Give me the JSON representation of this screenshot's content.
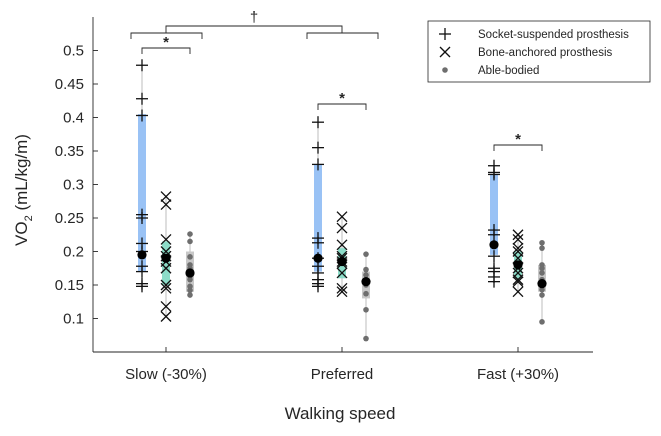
{
  "chart_data": {
    "type": "scatter",
    "xlabel": "Walking speed",
    "ylabel": "VO",
    "ylabel_sub": "2",
    "ylabel_unit": " (mL/kg/m)",
    "categories": [
      "Slow (-30%)",
      "Preferred",
      "Fast (+30%)"
    ],
    "ylim": [
      0.05,
      0.55
    ],
    "yticks": [
      0.1,
      0.15,
      0.2,
      0.25,
      0.3,
      0.35,
      0.4,
      0.45,
      0.5
    ],
    "ytick_labels": [
      "0.1",
      "0.15",
      "0.2",
      "0.25",
      "0.3",
      "0.35",
      "0.4",
      "0.45",
      "0.5"
    ],
    "grid": false,
    "legend_position": "top-right",
    "significance_marks": [
      {
        "label": "*",
        "between": "Socket-suspended prosthesis vs Able-bodied",
        "category": "Slow (-30%)"
      },
      {
        "label": "*",
        "between": "Socket-suspended prosthesis vs Able-bodied",
        "category": "Preferred"
      },
      {
        "label": "*",
        "between": "Socket-suspended prosthesis vs Able-bodied",
        "category": "Fast (+30%)"
      },
      {
        "label": "†",
        "between": "Slow (-30%) vs Preferred"
      }
    ],
    "series": [
      {
        "name": "Socket-suspended prosthesis",
        "marker": "plus",
        "band_color": "#99c2f5",
        "means": [
          0.195,
          0.19,
          0.21
        ],
        "ranges": [
          [
            0.17,
            0.405
          ],
          [
            0.17,
            0.33
          ],
          [
            0.195,
            0.315
          ]
        ],
        "values": [
          [
            0.478,
            0.428,
            0.403,
            0.255,
            0.25,
            0.212,
            0.2,
            0.178,
            0.17,
            0.152,
            0.148
          ],
          [
            0.393,
            0.355,
            0.33,
            0.22,
            0.213,
            0.19,
            0.178,
            0.168,
            0.158,
            0.152,
            0.148
          ],
          [
            0.328,
            0.318,
            0.315,
            0.232,
            0.225,
            0.193,
            0.175,
            0.17,
            0.162,
            0.155
          ]
        ]
      },
      {
        "name": "Bone-anchored prosthesis",
        "marker": "x",
        "band_color": "#8cdcc8",
        "means": [
          0.19,
          0.185,
          0.18
        ],
        "ranges": [
          [
            0.15,
            0.215
          ],
          [
            0.16,
            0.205
          ],
          [
            0.16,
            0.2
          ]
        ],
        "values": [
          [
            0.282,
            0.27,
            0.218,
            0.2,
            0.193,
            0.185,
            0.175,
            0.15,
            0.145,
            0.118,
            0.103
          ],
          [
            0.252,
            0.235,
            0.21,
            0.193,
            0.19,
            0.185,
            0.182,
            0.168,
            0.145,
            0.14
          ],
          [
            0.225,
            0.218,
            0.205,
            0.2,
            0.19,
            0.175,
            0.168,
            0.158,
            0.155,
            0.14
          ]
        ]
      },
      {
        "name": "Able-bodied",
        "marker": "dot",
        "band_color": "#c8c8c8",
        "means": [
          0.168,
          0.155,
          0.152
        ],
        "ranges": [
          [
            0.14,
            0.2
          ],
          [
            0.13,
            0.17
          ],
          [
            0.14,
            0.18
          ]
        ],
        "values": [
          [
            0.226,
            0.215,
            0.192,
            0.18,
            0.175,
            0.168,
            0.163,
            0.158,
            0.148,
            0.142,
            0.135
          ],
          [
            0.196,
            0.173,
            0.165,
            0.158,
            0.155,
            0.15,
            0.137,
            0.113,
            0.07
          ],
          [
            0.213,
            0.205,
            0.18,
            0.175,
            0.168,
            0.158,
            0.152,
            0.148,
            0.143,
            0.135,
            0.095
          ]
        ]
      }
    ]
  }
}
